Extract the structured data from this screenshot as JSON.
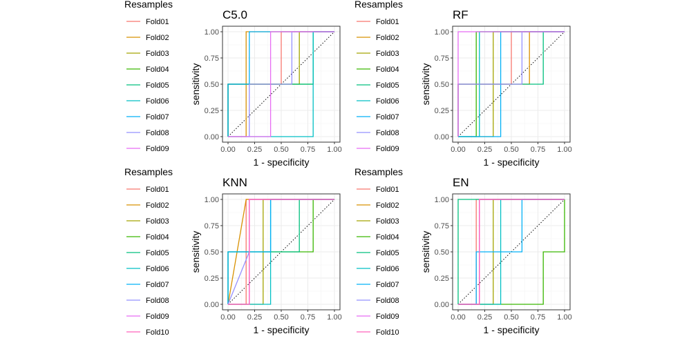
{
  "legend_title": "Resamples",
  "colors": {
    "Fold01": "#F8766D",
    "Fold02": "#D89000",
    "Fold03": "#A3A500",
    "Fold04": "#39B600",
    "Fold05": "#00BF7D",
    "Fold06": "#00BFC4",
    "Fold07": "#00B0F6",
    "Fold08": "#9590FF",
    "Fold09": "#E76BF3",
    "Fold10": "#FF62BC"
  },
  "chart_data": [
    {
      "type": "line",
      "title": "C5.0",
      "xlabel": "1 - specificity",
      "ylabel": "sensitivity",
      "xlim": [
        0,
        1
      ],
      "ylim": [
        0,
        1
      ],
      "xticks": [
        "0.00",
        "0.25",
        "0.50",
        "0.75",
        "1.00"
      ],
      "yticks": [
        "0.00",
        "0.25",
        "0.50",
        "0.75",
        "1.00"
      ],
      "grid": true,
      "reference_line": "diagonal-dotted",
      "legend": [
        "Fold01",
        "Fold02",
        "Fold03",
        "Fold04",
        "Fold05",
        "Fold06",
        "Fold07",
        "Fold08",
        "Fold09"
      ],
      "series": [
        {
          "name": "Fold01",
          "x": [
            0,
            0,
            0.5,
            0.5,
            1
          ],
          "y": [
            0,
            0.5,
            0.5,
            1,
            1
          ]
        },
        {
          "name": "Fold02",
          "x": [
            0,
            0.17,
            0.17,
            1
          ],
          "y": [
            0,
            0,
            1,
            1
          ]
        },
        {
          "name": "Fold03",
          "x": [
            0,
            0,
            0.67,
            0.67,
            1
          ],
          "y": [
            0,
            0.5,
            0.5,
            1,
            1
          ]
        },
        {
          "name": "Fold04",
          "x": [
            0,
            0,
            0.8,
            0.8,
            1
          ],
          "y": [
            0,
            0.5,
            0.5,
            1,
            1
          ]
        },
        {
          "name": "Fold05",
          "x": [
            0,
            0,
            0.8,
            0.8,
            1
          ],
          "y": [
            0,
            0.5,
            0.5,
            1,
            1
          ]
        },
        {
          "name": "Fold06",
          "x": [
            0,
            0.8,
            0.8,
            1
          ],
          "y": [
            0,
            0,
            1,
            1
          ]
        },
        {
          "name": "Fold07",
          "x": [
            0,
            0,
            0.2,
            0.2,
            1
          ],
          "y": [
            0,
            0.5,
            0.5,
            1,
            1
          ]
        },
        {
          "name": "Fold08",
          "x": [
            0,
            0.2,
            0.2,
            0.6,
            0.6,
            1
          ],
          "y": [
            0,
            0,
            0.5,
            0.5,
            1,
            1
          ]
        },
        {
          "name": "Fold09",
          "x": [
            0,
            0.4,
            0.4,
            1
          ],
          "y": [
            0,
            0,
            1,
            1
          ]
        }
      ]
    },
    {
      "type": "line",
      "title": "RF",
      "xlabel": "1 - specificity",
      "ylabel": "sensitivity",
      "xlim": [
        0,
        1
      ],
      "ylim": [
        0,
        1
      ],
      "xticks": [
        "0.00",
        "0.25",
        "0.50",
        "0.75",
        "1.00"
      ],
      "yticks": [
        "0.00",
        "0.25",
        "0.50",
        "0.75",
        "1.00"
      ],
      "grid": true,
      "reference_line": "diagonal-dotted",
      "legend": [
        "Fold01",
        "Fold02",
        "Fold03",
        "Fold04",
        "Fold05",
        "Fold06",
        "Fold07",
        "Fold08",
        "Fold09"
      ],
      "series": [
        {
          "name": "Fold01",
          "x": [
            0,
            0,
            0.5,
            0.5,
            1
          ],
          "y": [
            0,
            0.5,
            0.5,
            1,
            1
          ]
        },
        {
          "name": "Fold02",
          "x": [
            0,
            0,
            0.67,
            0.67,
            1
          ],
          "y": [
            0,
            0.5,
            0.5,
            1,
            1
          ]
        },
        {
          "name": "Fold03",
          "x": [
            0,
            0.33,
            0.33,
            1
          ],
          "y": [
            0,
            0,
            1,
            1
          ]
        },
        {
          "name": "Fold04",
          "x": [
            0,
            0.17,
            0.17,
            1
          ],
          "y": [
            0,
            0,
            1,
            1
          ]
        },
        {
          "name": "Fold05",
          "x": [
            0,
            0,
            0.8,
            0.8,
            1
          ],
          "y": [
            0,
            0.5,
            0.5,
            1,
            1
          ]
        },
        {
          "name": "Fold06",
          "x": [
            0,
            0.2,
            0.2,
            1
          ],
          "y": [
            0,
            0,
            1,
            1
          ]
        },
        {
          "name": "Fold07",
          "x": [
            0,
            0.4,
            0.4,
            1
          ],
          "y": [
            0,
            0,
            1,
            1
          ]
        },
        {
          "name": "Fold08",
          "x": [
            0,
            0,
            0.6,
            0.6,
            1
          ],
          "y": [
            0,
            0.5,
            0.5,
            1,
            1
          ]
        },
        {
          "name": "Fold09",
          "x": [
            0,
            0,
            1
          ],
          "y": [
            0,
            1,
            1
          ]
        }
      ]
    },
    {
      "type": "line",
      "title": "KNN",
      "xlabel": "1 - specificity",
      "ylabel": "sensitivity",
      "xlim": [
        0,
        1
      ],
      "ylim": [
        0,
        1
      ],
      "xticks": [
        "0.00",
        "0.25",
        "0.50",
        "0.75",
        "1.00"
      ],
      "yticks": [
        "0.00",
        "0.25",
        "0.50",
        "0.75",
        "1.00"
      ],
      "grid": true,
      "reference_line": "diagonal-dotted",
      "legend": [
        "Fold01",
        "Fold02",
        "Fold03",
        "Fold04",
        "Fold05",
        "Fold06",
        "Fold07",
        "Fold08",
        "Fold09",
        "Fold10"
      ],
      "series": [
        {
          "name": "Fold01",
          "x": [
            0,
            0.17,
            0.17,
            1
          ],
          "y": [
            0,
            0,
            1,
            1
          ]
        },
        {
          "name": "Fold02",
          "x": [
            0,
            0.17,
            1
          ],
          "y": [
            0,
            1,
            1
          ]
        },
        {
          "name": "Fold03",
          "x": [
            0,
            0.33,
            0.33,
            1
          ],
          "y": [
            0,
            0,
            1,
            1
          ]
        },
        {
          "name": "Fold04",
          "x": [
            0,
            0,
            0.8,
            0.8,
            1
          ],
          "y": [
            0,
            0.5,
            0.5,
            1,
            1
          ]
        },
        {
          "name": "Fold05",
          "x": [
            0,
            0,
            0.67,
            0.67,
            1
          ],
          "y": [
            0,
            0.5,
            0.5,
            1,
            1
          ]
        },
        {
          "name": "Fold06",
          "x": [
            0,
            0.4,
            0.4,
            1
          ],
          "y": [
            0,
            0,
            1,
            1
          ]
        },
        {
          "name": "Fold07",
          "x": [
            0,
            0,
            0.4,
            0.4,
            1
          ],
          "y": [
            0,
            0.5,
            0.5,
            1,
            1
          ]
        },
        {
          "name": "Fold08",
          "x": [
            0,
            0.2,
            0.2,
            1
          ],
          "y": [
            0,
            0.5,
            1,
            1
          ]
        },
        {
          "name": "Fold09",
          "x": [
            0,
            0.2,
            0.2,
            1
          ],
          "y": [
            0,
            0,
            1,
            1
          ]
        },
        {
          "name": "Fold10",
          "x": [
            0,
            0.2,
            0.2,
            1
          ],
          "y": [
            0,
            0,
            1,
            1
          ]
        }
      ]
    },
    {
      "type": "line",
      "title": "EN",
      "xlabel": "1 - specificity",
      "ylabel": "sensitivity",
      "xlim": [
        0,
        1
      ],
      "ylim": [
        0,
        1
      ],
      "xticks": [
        "0.00",
        "0.25",
        "0.50",
        "0.75",
        "1.00"
      ],
      "yticks": [
        "0.00",
        "0.25",
        "0.50",
        "0.75",
        "1.00"
      ],
      "grid": true,
      "reference_line": "diagonal-dotted",
      "legend": [
        "Fold01",
        "Fold02",
        "Fold03",
        "Fold04",
        "Fold05",
        "Fold06",
        "Fold07",
        "Fold08",
        "Fold09",
        "Fold10"
      ],
      "series": [
        {
          "name": "Fold01",
          "x": [
            0,
            0.17,
            0.17,
            1
          ],
          "y": [
            0,
            0,
            1,
            1
          ]
        },
        {
          "name": "Fold02",
          "x": [
            0,
            0.2,
            0.2,
            1
          ],
          "y": [
            0,
            0,
            1,
            1
          ]
        },
        {
          "name": "Fold03",
          "x": [
            0,
            0.33,
            0.33,
            1
          ],
          "y": [
            0,
            0,
            1,
            1
          ]
        },
        {
          "name": "Fold04",
          "x": [
            0,
            0.8,
            0.8,
            1,
            1
          ],
          "y": [
            0,
            0,
            0.5,
            0.5,
            1
          ]
        },
        {
          "name": "Fold05",
          "x": [
            0,
            0,
            1
          ],
          "y": [
            0,
            1,
            1
          ]
        },
        {
          "name": "Fold06",
          "x": [
            0,
            0.4,
            0.4,
            1
          ],
          "y": [
            0,
            0,
            1,
            1
          ]
        },
        {
          "name": "Fold07",
          "x": [
            0,
            0.17,
            0.17,
            0.6,
            0.6,
            1
          ],
          "y": [
            0,
            0,
            0.5,
            0.5,
            1,
            1
          ]
        },
        {
          "name": "Fold08",
          "x": [
            0,
            0.2,
            0.2,
            1
          ],
          "y": [
            0,
            0,
            1,
            1
          ]
        },
        {
          "name": "Fold09",
          "x": [
            0,
            0.2,
            0.2,
            1
          ],
          "y": [
            0,
            0,
            1,
            1
          ]
        },
        {
          "name": "Fold10",
          "x": [
            0,
            0.2,
            0.2,
            1
          ],
          "y": [
            0,
            0,
            1,
            1
          ]
        }
      ]
    }
  ]
}
